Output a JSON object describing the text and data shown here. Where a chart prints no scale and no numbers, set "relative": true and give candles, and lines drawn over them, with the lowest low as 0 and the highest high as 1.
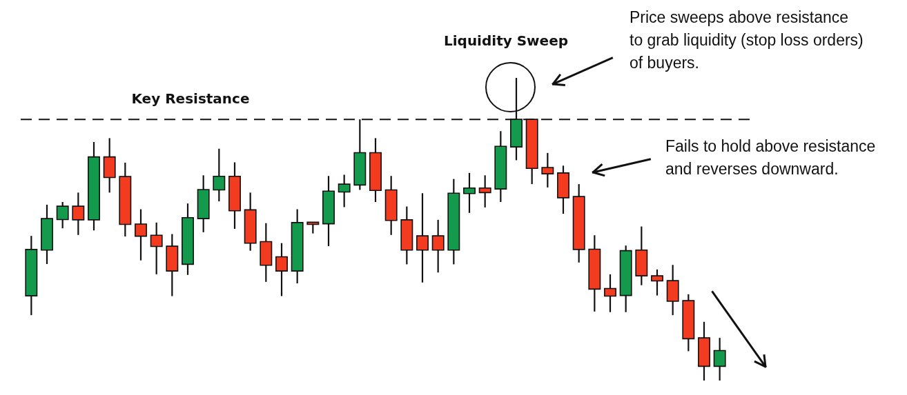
{
  "chart_data": {
    "type": "candlestick",
    "relative": true,
    "tick_labels": false,
    "categories": [
      null,
      null,
      null,
      null,
      null,
      null,
      null,
      null,
      null,
      null,
      null,
      null,
      null,
      null,
      null,
      null,
      null,
      null,
      null,
      null,
      null,
      null,
      null,
      null,
      null,
      null,
      null,
      null,
      null,
      null,
      null,
      null,
      null,
      null,
      null,
      null,
      null,
      null,
      null,
      null,
      null,
      null,
      null,
      null,
      null
    ],
    "ohlc": [
      [
        0.28,
        0.478,
        0.216,
        0.433
      ],
      [
        0.431,
        0.581,
        0.385,
        0.535
      ],
      [
        0.532,
        0.59,
        0.503,
        0.576
      ],
      [
        0.576,
        0.621,
        0.481,
        0.531
      ],
      [
        0.531,
        0.788,
        0.496,
        0.739
      ],
      [
        0.739,
        0.801,
        0.621,
        0.671
      ],
      [
        0.674,
        0.72,
        0.476,
        0.516
      ],
      [
        0.517,
        0.566,
        0.397,
        0.477
      ],
      [
        0.48,
        0.522,
        0.351,
        0.443
      ],
      [
        0.444,
        0.484,
        0.279,
        0.362
      ],
      [
        0.384,
        0.585,
        0.349,
        0.538
      ],
      [
        0.535,
        0.678,
        0.49,
        0.631
      ],
      [
        0.63,
        0.766,
        0.592,
        0.675
      ],
      [
        0.675,
        0.721,
        0.501,
        0.561
      ],
      [
        0.564,
        0.621,
        0.429,
        0.454
      ],
      [
        0.459,
        0.52,
        0.326,
        0.381
      ],
      [
        0.409,
        0.454,
        0.279,
        0.362
      ],
      [
        0.362,
        0.566,
        0.321,
        0.522
      ],
      [
        0.523,
        0.523,
        0.486,
        0.516
      ],
      [
        0.518,
        0.676,
        0.444,
        0.626
      ],
      [
        0.623,
        0.68,
        0.573,
        0.649
      ],
      [
        0.646,
        0.863,
        0.63,
        0.753
      ],
      [
        0.753,
        0.801,
        0.59,
        0.628
      ],
      [
        0.63,
        0.676,
        0.481,
        0.529
      ],
      [
        0.531,
        0.575,
        0.384,
        0.431
      ],
      [
        0.478,
        0.619,
        0.324,
        0.431
      ],
      [
        0.478,
        0.531,
        0.357,
        0.431
      ],
      [
        0.431,
        0.666,
        0.384,
        0.619
      ],
      [
        0.618,
        0.686,
        0.554,
        0.636
      ],
      [
        0.636,
        0.678,
        0.572,
        0.621
      ],
      [
        0.633,
        0.824,
        0.59,
        0.774
      ],
      [
        0.772,
        1,
        0.728,
        0.863
      ],
      [
        0.863,
        0.863,
        0.649,
        0.701
      ],
      [
        0.704,
        0.752,
        0.638,
        0.683
      ],
      [
        0.686,
        0.71,
        0.551,
        0.604
      ],
      [
        0.608,
        0.649,
        0.39,
        0.433
      ],
      [
        0.434,
        0.48,
        0.228,
        0.302
      ],
      [
        0.304,
        0.351,
        0.226,
        0.279
      ],
      [
        0.281,
        0.446,
        0.226,
        0.429
      ],
      [
        0.431,
        0.509,
        0.315,
        0.346
      ],
      [
        0.346,
        0.367,
        0.281,
        0.329
      ],
      [
        0.33,
        0.382,
        0.216,
        0.262
      ],
      [
        0.264,
        0.285,
        0.097,
        0.138
      ],
      [
        0.141,
        0.194,
        0,
        0.047
      ],
      [
        0.047,
        0.141,
        0,
        0.099
      ]
    ],
    "colors": [
      "#139a4c",
      "#139a4c",
      "#139a4c",
      "#f23b1f",
      "#139a4c",
      "#f23b1f",
      "#f23b1f",
      "#f23b1f",
      "#f23b1f",
      "#f23b1f",
      "#139a4c",
      "#139a4c",
      "#139a4c",
      "#f23b1f",
      "#f23b1f",
      "#f23b1f",
      "#f23b1f",
      "#139a4c",
      "#f23b1f",
      "#139a4c",
      "#139a4c",
      "#139a4c",
      "#f23b1f",
      "#f23b1f",
      "#f23b1f",
      "#f23b1f",
      "#f23b1f",
      "#139a4c",
      "#139a4c",
      "#f23b1f",
      "#139a4c",
      "#139a4c",
      "#f23b1f",
      "#f23b1f",
      "#f23b1f",
      "#f23b1f",
      "#f23b1f",
      "#f23b1f",
      "#139a4c",
      "#f23b1f",
      "#f23b1f",
      "#f23b1f",
      "#f23b1f",
      "#f23b1f",
      "#139a4c"
    ],
    "ref_lines": [
      {
        "axis": "y",
        "value": 0.863,
        "label": "Key Resistance",
        "color": "#111111",
        "line_style": "dashed"
      }
    ],
    "annotations": [
      "Liquidity Sweep",
      "Price sweeps above resistance to grab liquidity (stop loss orders) of buyers.",
      "Fails to hold above resistance and reverses downward."
    ]
  }
}
